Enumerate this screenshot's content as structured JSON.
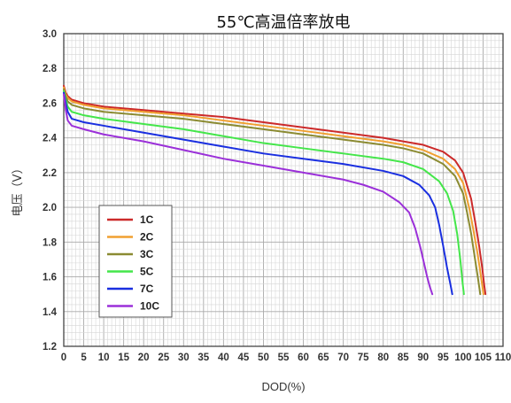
{
  "chart_data": {
    "type": "line",
    "title": "55℃高温倍率放电",
    "xlabel": "DOD(%)",
    "ylabel": "电压（V）",
    "xlim": [
      0,
      110
    ],
    "ylim": [
      1.2,
      3.0
    ],
    "x_ticks": [
      "0",
      "5",
      "10",
      "15",
      "20",
      "25",
      "30",
      "35",
      "40",
      "45",
      "50",
      "55",
      "60",
      "65",
      "70",
      "75",
      "80",
      "85",
      "90",
      "95",
      "100",
      "105",
      "110"
    ],
    "y_ticks": [
      "1.2",
      "1.4",
      "1.6",
      "1.8",
      "2.0",
      "2.2",
      "2.4",
      "2.6",
      "2.8",
      "3.0"
    ],
    "grid": true,
    "legend_position": "lower-left",
    "series": [
      {
        "name": "1C",
        "color": "#cc2a2a",
        "x": [
          0,
          0.5,
          1,
          2,
          5,
          10,
          20,
          30,
          40,
          50,
          60,
          70,
          80,
          85,
          90,
          95,
          98,
          100,
          102,
          103,
          104,
          104.8,
          105.3,
          105.6
        ],
        "y": [
          2.7,
          2.66,
          2.64,
          2.62,
          2.6,
          2.58,
          2.56,
          2.54,
          2.52,
          2.49,
          2.46,
          2.43,
          2.4,
          2.38,
          2.36,
          2.32,
          2.27,
          2.2,
          2.05,
          1.92,
          1.78,
          1.65,
          1.55,
          1.5
        ]
      },
      {
        "name": "2C",
        "color": "#f0a030",
        "x": [
          0,
          0.5,
          1,
          2,
          5,
          10,
          20,
          30,
          40,
          50,
          60,
          70,
          80,
          85,
          90,
          95,
          98,
          100,
          101.5,
          102.5,
          103.5,
          104.3,
          104.8,
          105.1
        ],
        "y": [
          2.69,
          2.65,
          2.63,
          2.61,
          2.59,
          2.57,
          2.55,
          2.53,
          2.5,
          2.47,
          2.44,
          2.41,
          2.38,
          2.36,
          2.33,
          2.28,
          2.22,
          2.14,
          2.0,
          1.88,
          1.75,
          1.63,
          1.55,
          1.5
        ]
      },
      {
        "name": "3C",
        "color": "#8b8b32",
        "x": [
          0,
          0.5,
          1,
          2,
          5,
          10,
          20,
          30,
          40,
          50,
          60,
          70,
          80,
          85,
          90,
          95,
          98,
          100,
          101,
          102,
          103,
          103.8,
          104.3
        ],
        "y": [
          2.68,
          2.64,
          2.61,
          2.59,
          2.57,
          2.55,
          2.53,
          2.51,
          2.48,
          2.45,
          2.42,
          2.39,
          2.36,
          2.34,
          2.31,
          2.25,
          2.18,
          2.08,
          1.97,
          1.85,
          1.7,
          1.58,
          1.5
        ]
      },
      {
        "name": "5C",
        "color": "#44e64a",
        "x": [
          0,
          0.5,
          1,
          2,
          5,
          10,
          20,
          30,
          40,
          50,
          60,
          70,
          80,
          85,
          90,
          94,
          96,
          97.5,
          98.5,
          99.3,
          99.8,
          100.2
        ],
        "y": [
          2.67,
          2.62,
          2.58,
          2.55,
          2.53,
          2.51,
          2.48,
          2.45,
          2.41,
          2.37,
          2.34,
          2.31,
          2.28,
          2.26,
          2.22,
          2.15,
          2.08,
          1.98,
          1.85,
          1.7,
          1.58,
          1.5
        ]
      },
      {
        "name": "7C",
        "color": "#1a2fe0",
        "x": [
          0,
          0.5,
          1,
          2,
          5,
          10,
          20,
          30,
          40,
          50,
          60,
          70,
          80,
          85,
          89,
          91.5,
          93,
          94,
          95,
          96,
          96.8,
          97.3
        ],
        "y": [
          2.66,
          2.6,
          2.55,
          2.51,
          2.49,
          2.47,
          2.43,
          2.39,
          2.35,
          2.31,
          2.28,
          2.25,
          2.21,
          2.18,
          2.13,
          2.07,
          2.0,
          1.9,
          1.78,
          1.65,
          1.56,
          1.5
        ]
      },
      {
        "name": "10C",
        "color": "#9b30d9",
        "x": [
          0,
          0.5,
          1,
          2,
          5,
          10,
          20,
          30,
          40,
          50,
          60,
          70,
          75,
          80,
          84,
          86.5,
          88,
          89.3,
          90.2,
          91,
          91.7,
          92.3
        ],
        "y": [
          2.65,
          2.56,
          2.5,
          2.47,
          2.45,
          2.42,
          2.38,
          2.33,
          2.28,
          2.24,
          2.2,
          2.16,
          2.13,
          2.09,
          2.03,
          1.97,
          1.88,
          1.77,
          1.68,
          1.6,
          1.54,
          1.5
        ]
      }
    ]
  }
}
